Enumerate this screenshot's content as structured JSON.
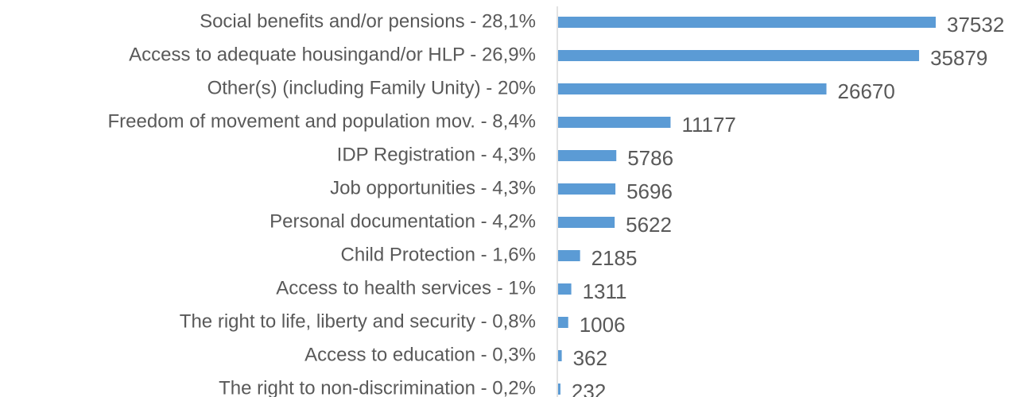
{
  "chart_data": {
    "type": "bar",
    "orientation": "horizontal",
    "categories": [
      "Social benefits and/or pensions - 28,1%",
      "Access to adequate housingand/or HLP - 26,9%",
      "Other(s) (including Family Unity) - 20%",
      "Freedom of movement and population mov. - 8,4%",
      "IDP Registration - 4,3%",
      "Job opportunities - 4,3%",
      "Personal documentation - 4,2%",
      "Child Protection - 1,6%",
      "Access to health services - 1%",
      "The right to life, liberty and security - 0,8%",
      "Access to education - 0,3%",
      "The right to non-discrimination - 0,2%"
    ],
    "values": [
      37532,
      35879,
      26670,
      11177,
      5786,
      5696,
      5622,
      2185,
      1311,
      1006,
      362,
      232
    ],
    "color": "#5b9bd5"
  }
}
